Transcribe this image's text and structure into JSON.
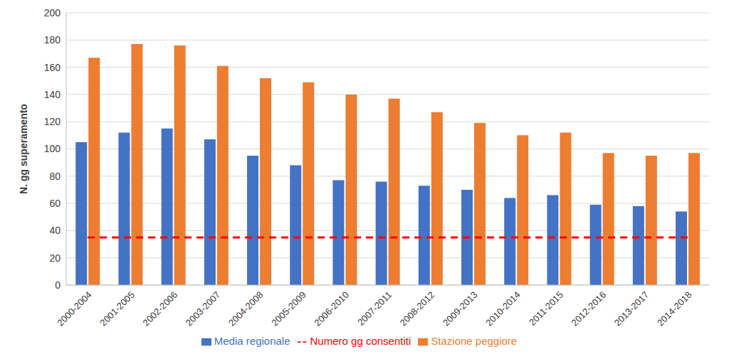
{
  "chart_data": {
    "type": "bar",
    "categories": [
      "2000-2004",
      "2001-2005",
      "2002-2006",
      "2003-2007",
      "2004-2008",
      "2005-2009",
      "2006-2010",
      "2007-2011",
      "2008-2012",
      "2009-2013",
      "2010-2014",
      "2011-2015",
      "2012-2016",
      "2013-2017",
      "2014-2018"
    ],
    "series": [
      {
        "name": "Media regionale",
        "color": "#4472c4",
        "values": [
          105,
          112,
          115,
          107,
          95,
          88,
          77,
          76,
          73,
          70,
          64,
          66,
          59,
          58,
          54
        ]
      },
      {
        "name": "Stazione peggiore",
        "color": "#ed7d31",
        "values": [
          167,
          177,
          176,
          161,
          152,
          149,
          140,
          137,
          127,
          119,
          110,
          112,
          97,
          95,
          97
        ]
      },
      {
        "name": "Numero gg consentiti",
        "color": "#ff0000",
        "type": "line",
        "line_style": "dashed",
        "values": [
          35,
          35,
          35,
          35,
          35,
          35,
          35,
          35,
          35,
          35,
          35,
          35,
          35,
          35,
          35
        ]
      }
    ],
    "ylabel": "N. gg superamento",
    "ylim": [
      0,
      200
    ],
    "yticks": [
      0,
      20,
      40,
      60,
      80,
      100,
      120,
      140,
      160,
      180,
      200
    ],
    "grid": true,
    "legend": "bottom"
  }
}
